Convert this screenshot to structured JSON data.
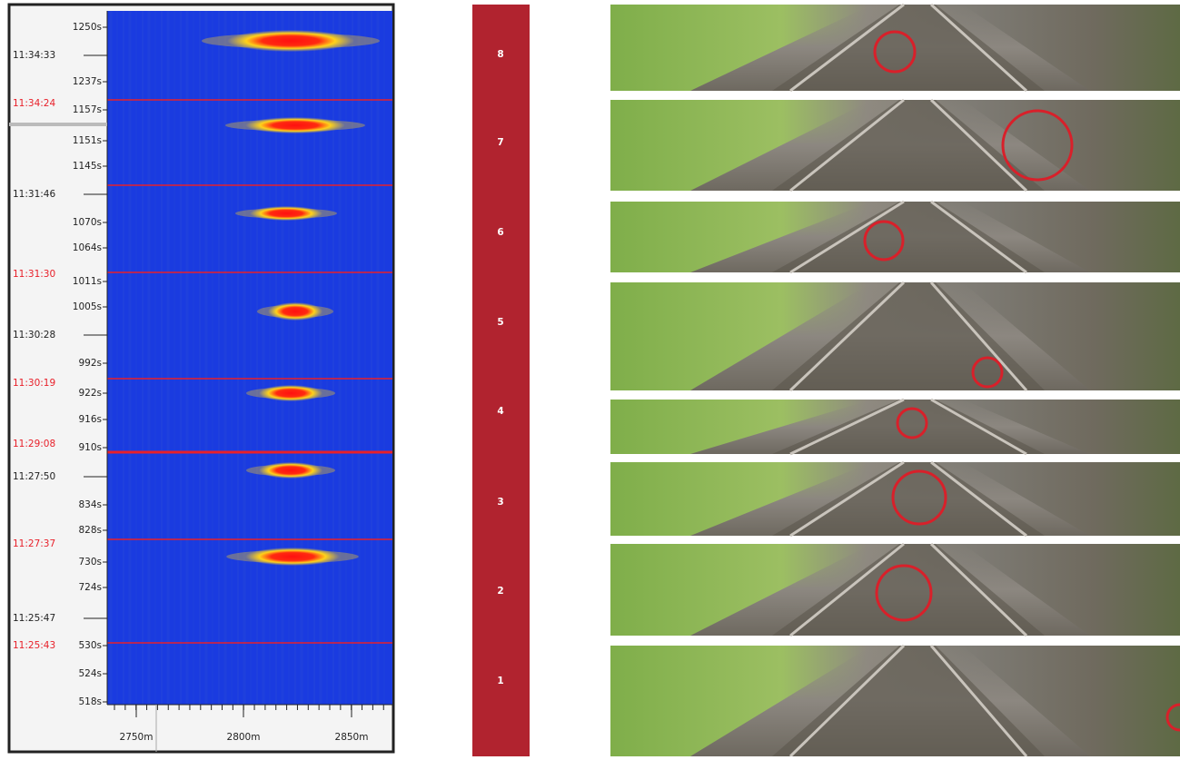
{
  "plot": {
    "x_labels": [
      "2750m",
      "2800m",
      "2850m"
    ],
    "seconds_labels": [
      "1250s",
      "1237s",
      "1157s",
      "1151s",
      "1145s",
      "1070s",
      "1064s",
      "1011s",
      "1005s",
      "992s",
      "922s",
      "916s",
      "910s",
      "834s",
      "828s",
      "730s",
      "724s",
      "530s",
      "524s",
      "518s"
    ],
    "time_labels": [
      "11:34:33",
      "11:31:46",
      "11:30:28",
      "11:27:50",
      "11:25:47"
    ],
    "event_time_labels": [
      "11:34:24",
      "11:31:30",
      "11:30:19",
      "11:29:08",
      "11:27:37",
      "11:25:43"
    ]
  },
  "events": [
    "8",
    "7",
    "6",
    "5",
    "4",
    "3",
    "2",
    "1"
  ]
}
